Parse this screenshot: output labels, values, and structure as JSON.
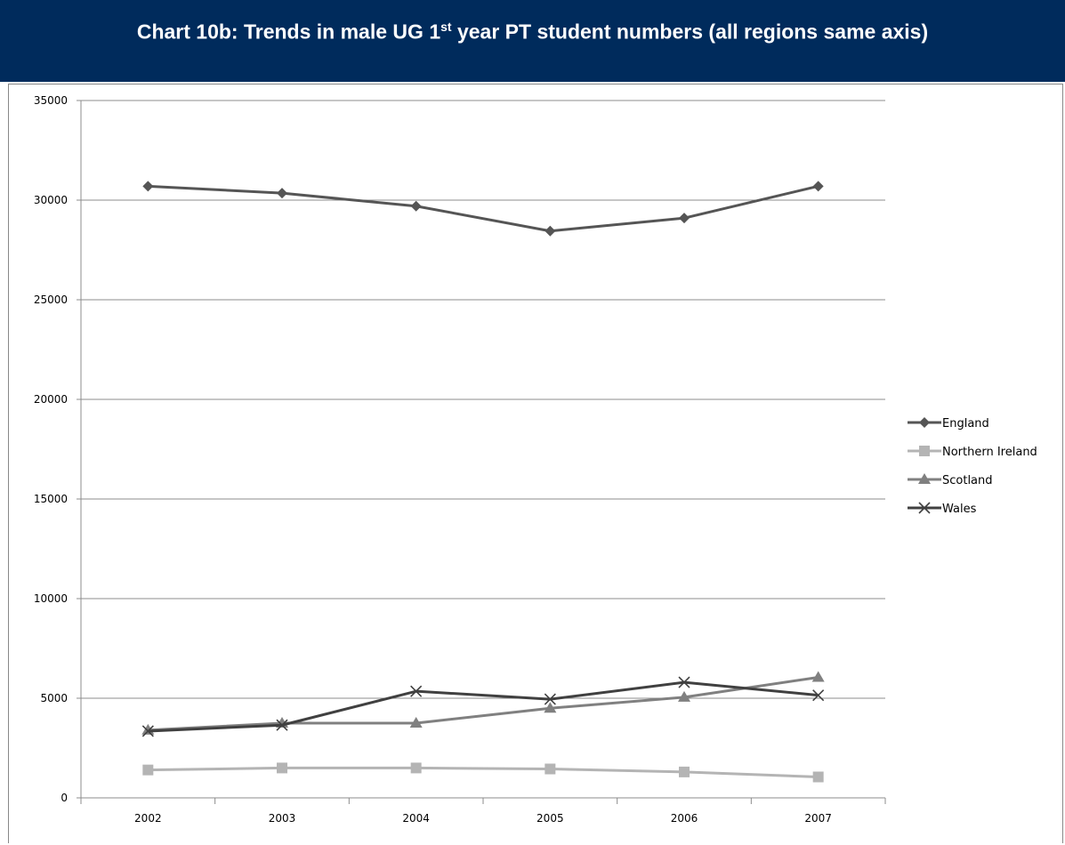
{
  "banner": {
    "title_pre": "Chart 10b: Trends in male UG 1",
    "title_sup": "st",
    "title_post": " year PT student numbers (all regions same axis)",
    "background": "#002b5c"
  },
  "chart_data": {
    "type": "line",
    "title": "Chart 10b: Trends in male UG 1st year PT student numbers (all regions same axis)",
    "xlabel": "",
    "ylabel": "",
    "categories": [
      "2002",
      "2003",
      "2004",
      "2005",
      "2006",
      "2007"
    ],
    "ylim": [
      0,
      35000
    ],
    "yticks": [
      0,
      5000,
      10000,
      15000,
      20000,
      25000,
      30000,
      35000
    ],
    "grid": "horizontal",
    "legend_position": "right",
    "series": [
      {
        "name": "England",
        "values": [
          30700,
          30350,
          29700,
          28450,
          29100,
          30700
        ],
        "color": "#555555",
        "marker": "diamond"
      },
      {
        "name": "Northern Ireland",
        "values": [
          1400,
          1500,
          1500,
          1450,
          1300,
          1050
        ],
        "color": "#b4b4b4",
        "marker": "square"
      },
      {
        "name": "Scotland",
        "values": [
          3400,
          3750,
          3750,
          4500,
          5050,
          6050
        ],
        "color": "#808080",
        "marker": "triangle"
      },
      {
        "name": "Wales",
        "values": [
          3350,
          3650,
          5350,
          4950,
          5800,
          5150
        ],
        "color": "#404040",
        "marker": "x"
      }
    ]
  }
}
